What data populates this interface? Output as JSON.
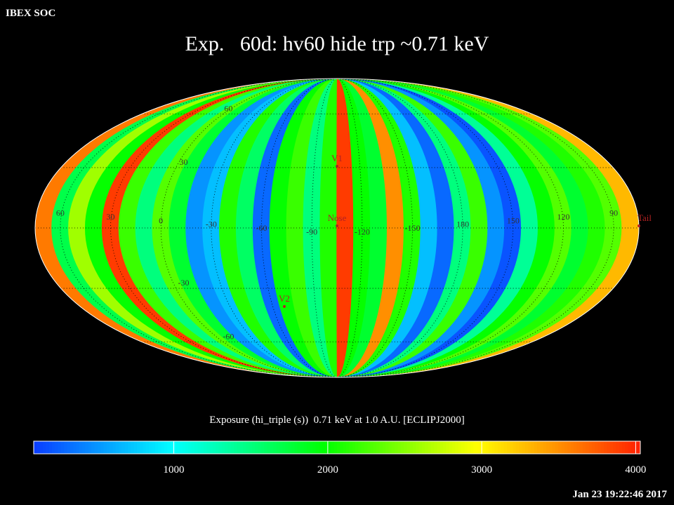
{
  "header": {
    "app": "IBEX SOC",
    "timestamp": "Jan 23 19:22:46 2017"
  },
  "chart_data": {
    "type": "skymap",
    "title": "Exp.   60d: hv60 hide trp ~0.71 keV",
    "colorbar_label": "Exposure (hi_triple (s))  0.71 keV at 1.0 A.U. [ECLIPJ2000]",
    "stripe_values": [
      3600,
      1700,
      2600,
      2000,
      3900,
      2200,
      1500,
      2300,
      1800,
      500,
      700,
      2100,
      1600,
      300,
      2000,
      2200,
      1500,
      2100,
      3900,
      2000,
      1800,
      3500,
      2100,
      700,
      300,
      1500,
      2200,
      500,
      200,
      1400,
      2000,
      2300,
      1800,
      2100,
      2300,
      3300
    ],
    "clim": [
      90,
      4030
    ],
    "cticks": [
      1000,
      2000,
      3000,
      4000
    ],
    "lon_ticks": [
      60,
      30,
      0,
      -30,
      -60,
      -90,
      -120,
      -150,
      180,
      150,
      120,
      90
    ],
    "lat_ticks": [
      60,
      30,
      -30,
      -60
    ],
    "markers": [
      "V1",
      "Nose",
      "V2",
      "Tail"
    ]
  }
}
